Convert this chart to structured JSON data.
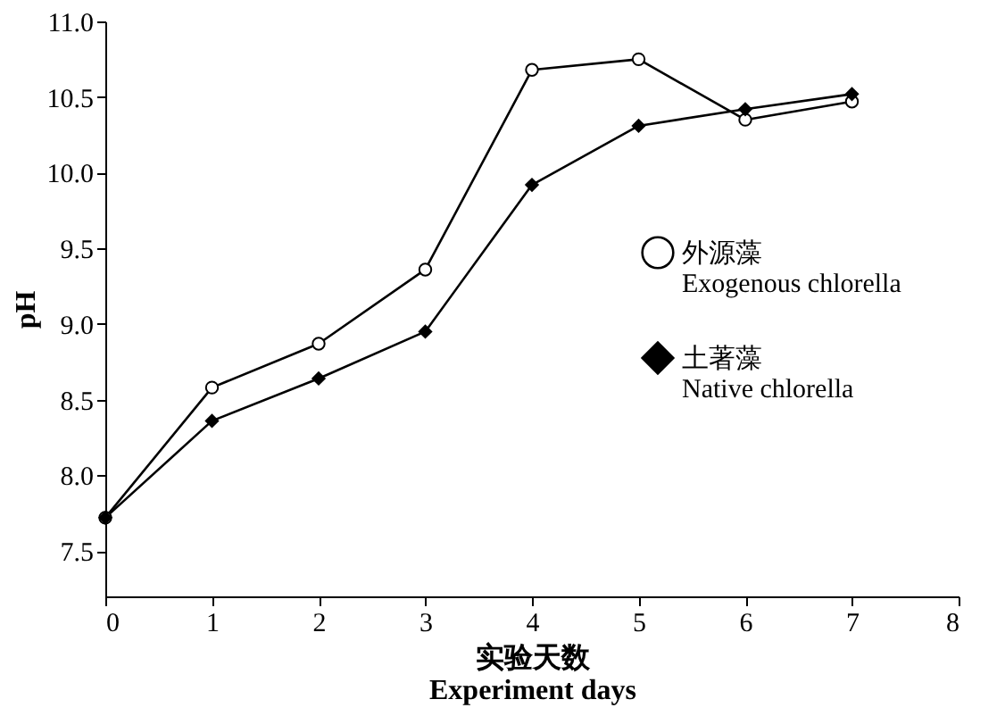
{
  "chart_data": {
    "type": "line",
    "xlabel": "实验天数\nExperiment days",
    "ylabel": "pH",
    "x": [
      0,
      1,
      2,
      3,
      4,
      5,
      6,
      7
    ],
    "xlim": [
      0,
      8
    ],
    "xticks": [
      0,
      1,
      2,
      3,
      4,
      5,
      6,
      7,
      8
    ],
    "ylim": [
      7.2,
      11.0
    ],
    "yticks": [
      7.5,
      {
        "value": 8,
        "label": "8.0"
      },
      8.5,
      {
        "value": 9,
        "label": "9.0"
      },
      9.5,
      {
        "value": 10,
        "label": "10.0"
      },
      10.5,
      {
        "value": 11,
        "label": "11.0"
      }
    ],
    "grid": false,
    "legend": "right",
    "line_style": "solid",
    "series": [
      {
        "name": "外源藻\nExogenous chlorella",
        "color": "#000000",
        "marker": "circle",
        "values": [
          7.72,
          8.58,
          8.87,
          9.36,
          10.68,
          10.75,
          10.35,
          10.47
        ]
      },
      {
        "name": "土著藻\nNative chlorella",
        "color": "#000000",
        "marker": "diamond",
        "values": [
          7.72,
          8.36,
          8.64,
          8.95,
          9.92,
          10.31,
          10.42,
          10.52
        ]
      }
    ]
  }
}
